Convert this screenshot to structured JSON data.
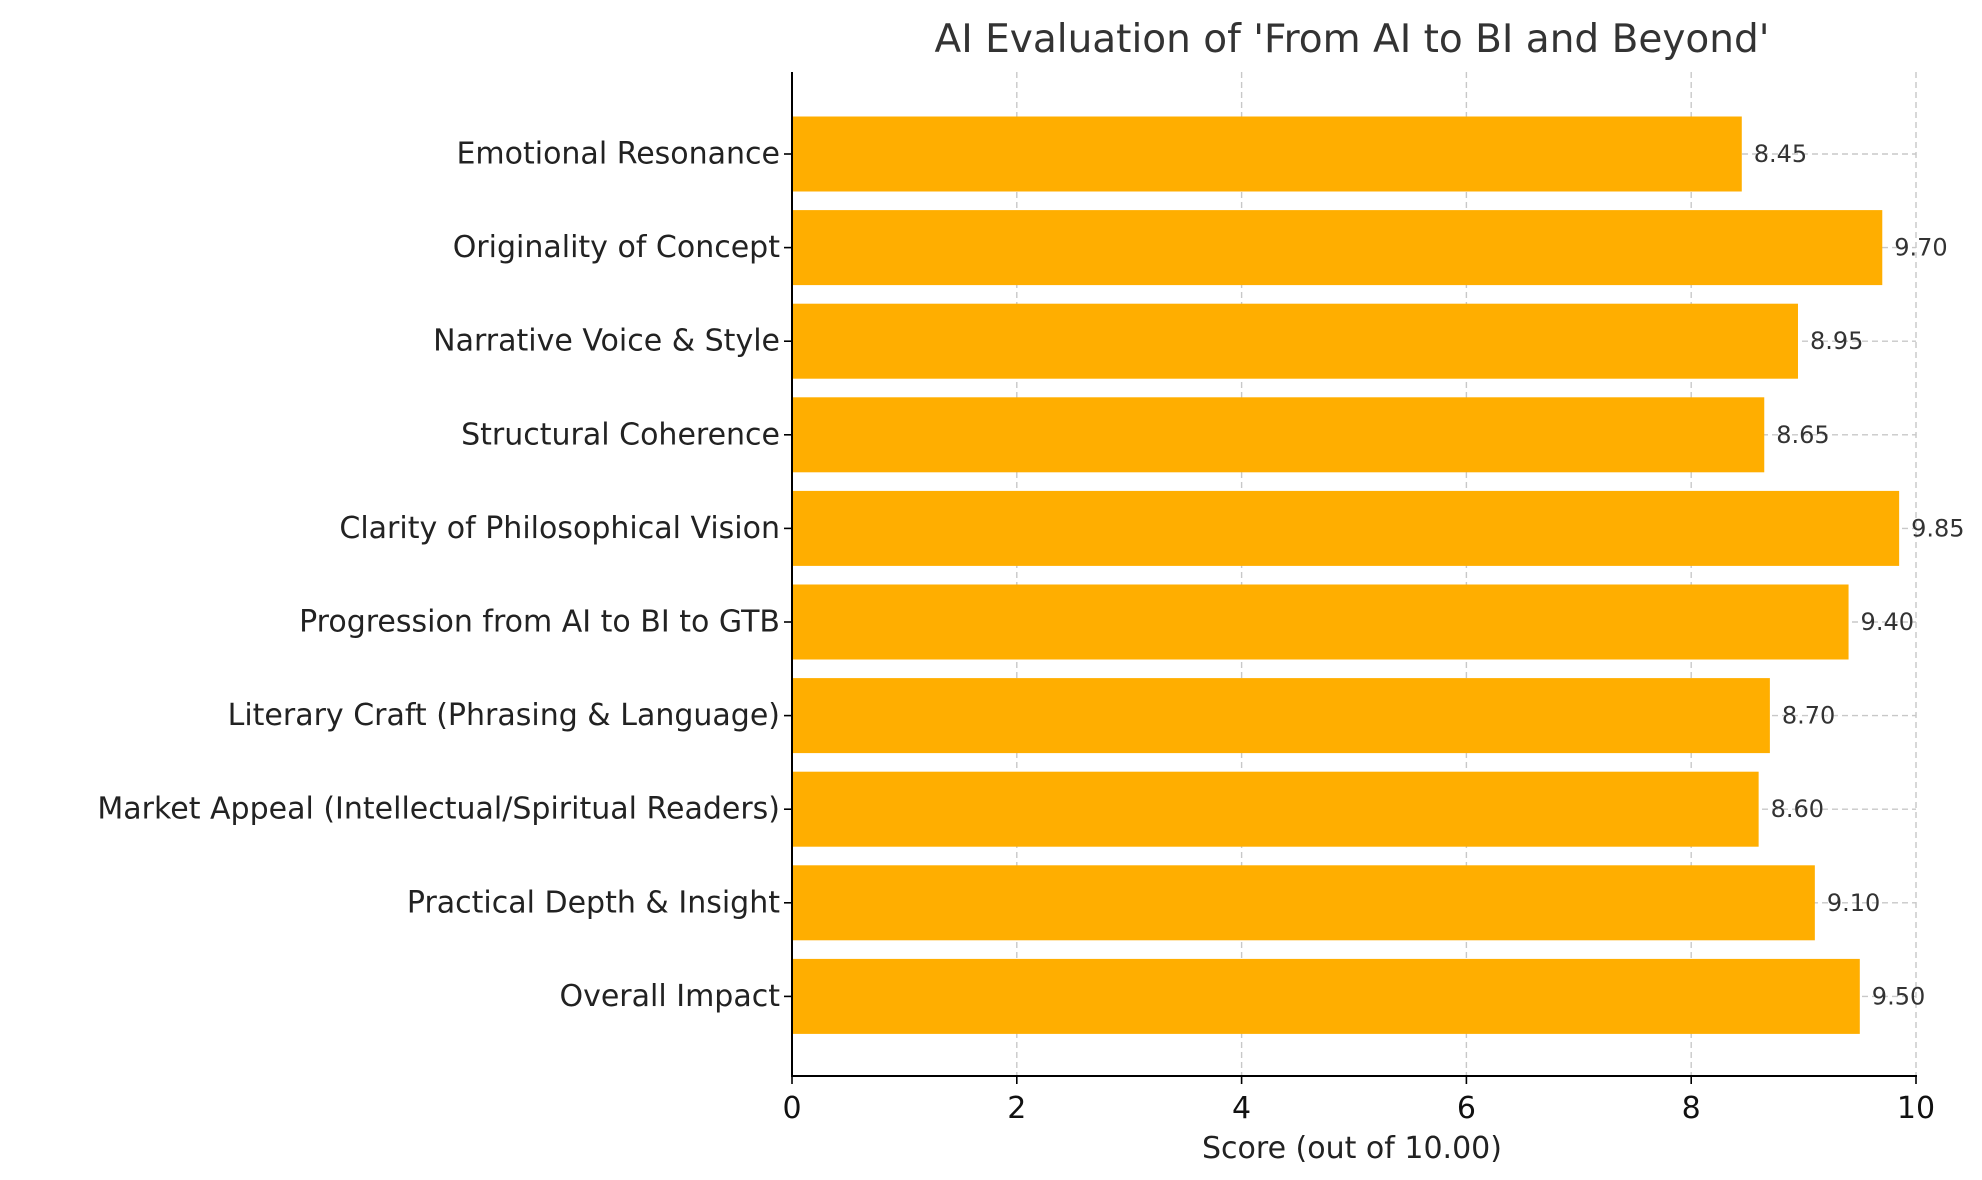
{
  "chart_data": {
    "type": "bar",
    "orientation": "horizontal",
    "title": "AI Evaluation of 'From AI to BI and Beyond'",
    "xlabel": "Score (out of 10.00)",
    "ylabel": "",
    "xlim": [
      0,
      10
    ],
    "x_ticks": [
      "0",
      "2",
      "4",
      "6",
      "8",
      "10"
    ],
    "grid": true,
    "bar_color": "#FFAE00",
    "categories": [
      "Emotional Resonance",
      "Originality of Concept",
      "Narrative Voice & Style",
      "Structural Coherence",
      "Clarity of Philosophical Vision",
      "Progression from AI to BI to GTB",
      "Literary Craft (Phrasing & Language)",
      "Market Appeal (Intellectual/Spiritual Readers)",
      "Practical Depth & Insight",
      "Overall Impact"
    ],
    "values": [
      8.45,
      9.7,
      8.95,
      8.65,
      9.85,
      9.4,
      8.7,
      8.6,
      9.1,
      9.5
    ],
    "value_labels": [
      "8.45",
      "9.70",
      "8.95",
      "8.65",
      "9.85",
      "9.40",
      "8.70",
      "8.60",
      "9.10",
      "9.50"
    ]
  }
}
